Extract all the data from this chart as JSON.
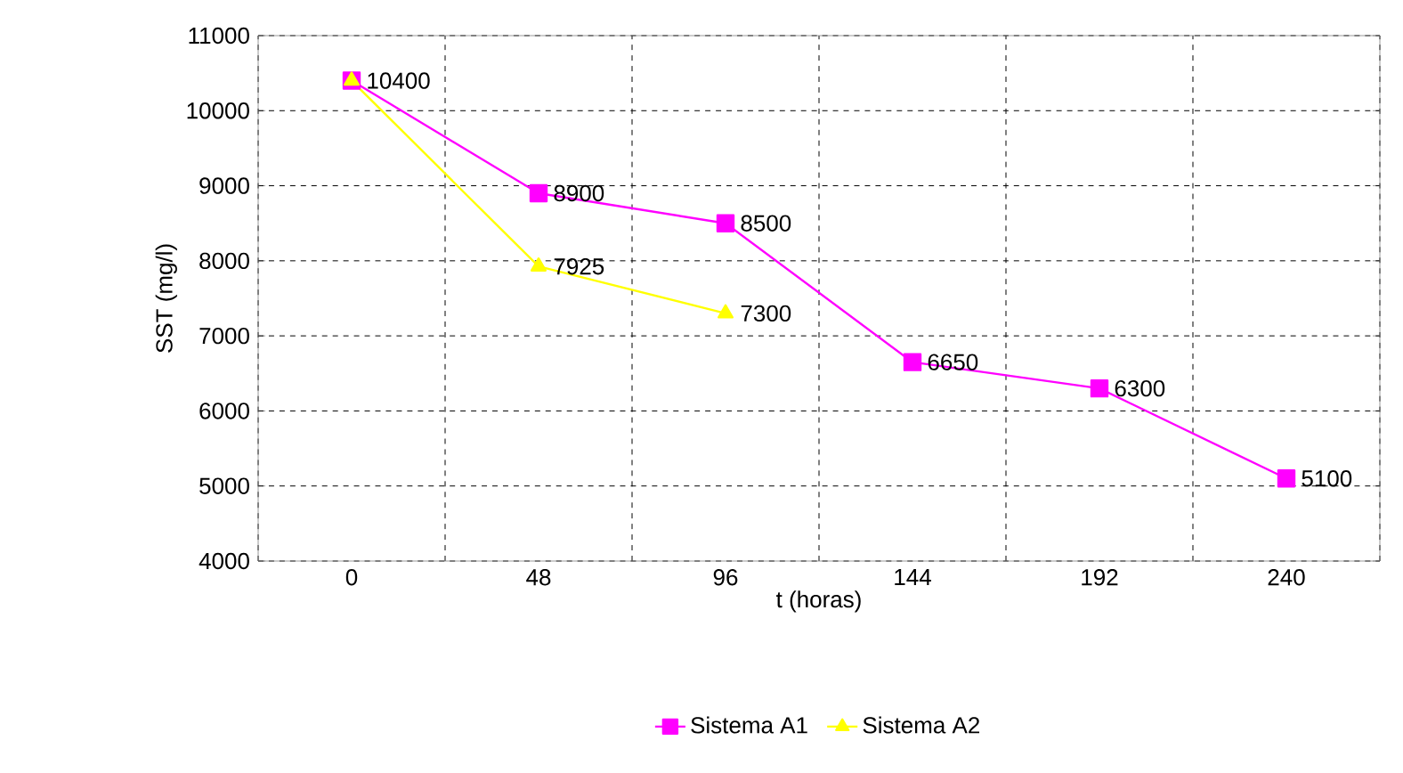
{
  "chart_data": {
    "type": "line",
    "xlabel": "t (horas)",
    "ylabel": "SST (mg/l)",
    "categories": [
      "0",
      "48",
      "96",
      "144",
      "192",
      "240"
    ],
    "series": [
      {
        "name": "Sistema A1",
        "color": "#ff00ff",
        "marker": "square",
        "values": [
          10400,
          8900,
          8500,
          6650,
          6300,
          5100
        ],
        "value_labels": [
          "10400",
          "8900",
          "8500",
          "6650",
          "6300",
          "5100"
        ]
      },
      {
        "name": "Sistema A2",
        "color": "#ffff00",
        "marker": "triangle",
        "values": [
          10400,
          7925,
          7300,
          null,
          null,
          null
        ],
        "value_labels": [
          null,
          "7925",
          "7300",
          null,
          null,
          null
        ]
      }
    ],
    "ylim": [
      4000,
      11000
    ],
    "yticks": [
      4000,
      5000,
      6000,
      7000,
      8000,
      9000,
      10000,
      11000
    ],
    "grid": true,
    "legend": "bottom",
    "line_style": "solid"
  }
}
